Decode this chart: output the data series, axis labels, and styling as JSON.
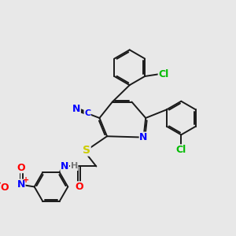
{
  "bg_color": "#e8e8e8",
  "bond_color": "#1a1a1a",
  "bond_width": 1.4,
  "atom_colors": {
    "N": "#0000ff",
    "O": "#ff0000",
    "S": "#cccc00",
    "Cl": "#00bb00",
    "C_nitrile": "#0000ff",
    "N_nitrile": "#0000ff",
    "H": "#777777",
    "plus": "#ff0000",
    "minus": "#ff0000"
  },
  "font_size": 8,
  "fig_size": [
    3.0,
    3.0
  ],
  "dpi": 100
}
